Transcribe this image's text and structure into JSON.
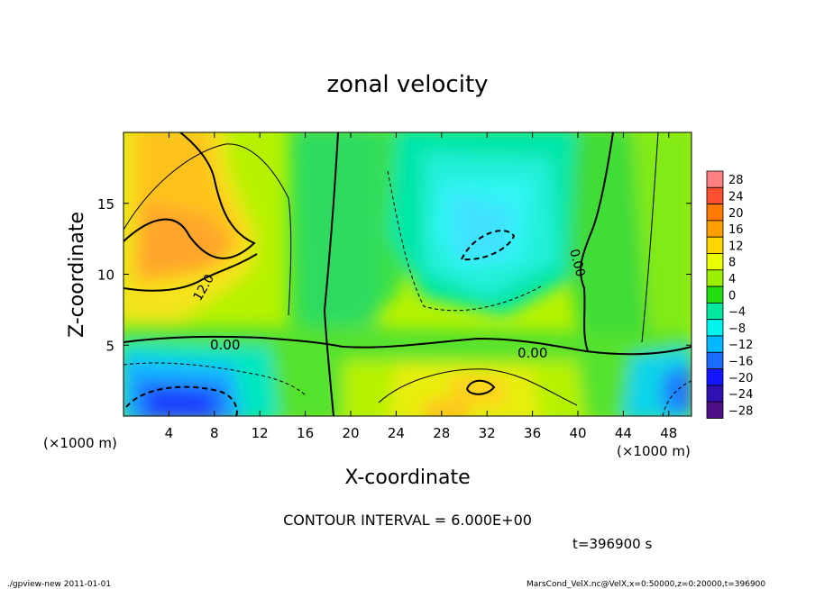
{
  "chart_data": {
    "type": "heatmap",
    "title": "zonal velocity",
    "xlabel": "X-coordinate",
    "ylabel": "Z-coordinate",
    "x_unit_label": "(×1000 m)",
    "y_unit_label": "(×1000 m)",
    "xlim": [
      0,
      50
    ],
    "ylim": [
      0,
      20
    ],
    "xticks": [
      4,
      8,
      12,
      16,
      20,
      24,
      28,
      32,
      36,
      40,
      44,
      48
    ],
    "yticks": [
      5,
      10,
      15
    ],
    "colorbar": {
      "levels": [
        28,
        24,
        20,
        16,
        12,
        8,
        4,
        0,
        -4,
        -8,
        -12,
        -16,
        -20,
        -24,
        -28
      ],
      "labels": [
        "28",
        "24",
        "20",
        "16",
        "12",
        "8",
        "4",
        "0",
        "−4",
        "−8",
        "−12",
        "−16",
        "−20",
        "−24",
        "−28"
      ],
      "colors": [
        "#ff8080",
        "#ff5030",
        "#ff7a00",
        "#ff9e00",
        "#ffd500",
        "#e8ff00",
        "#9af000",
        "#22dd10",
        "#00e8a0",
        "#00f5ee",
        "#00b8ff",
        "#1a6cff",
        "#1515ff",
        "#3010b0",
        "#4e0f87"
      ]
    },
    "contour_labels": [
      "12.0",
      "0.00",
      "0.00",
      "0.00"
    ],
    "contour_interval_text": "CONTOUR INTERVAL = 6.000E+00",
    "time_text": "t=396900 s",
    "grid": false
  },
  "footer": {
    "left": "./gpview-new  2011-01-01",
    "right": "MarsCond_VelX.nc@VelX,x=0:50000,z=0:20000,t=396900"
  }
}
